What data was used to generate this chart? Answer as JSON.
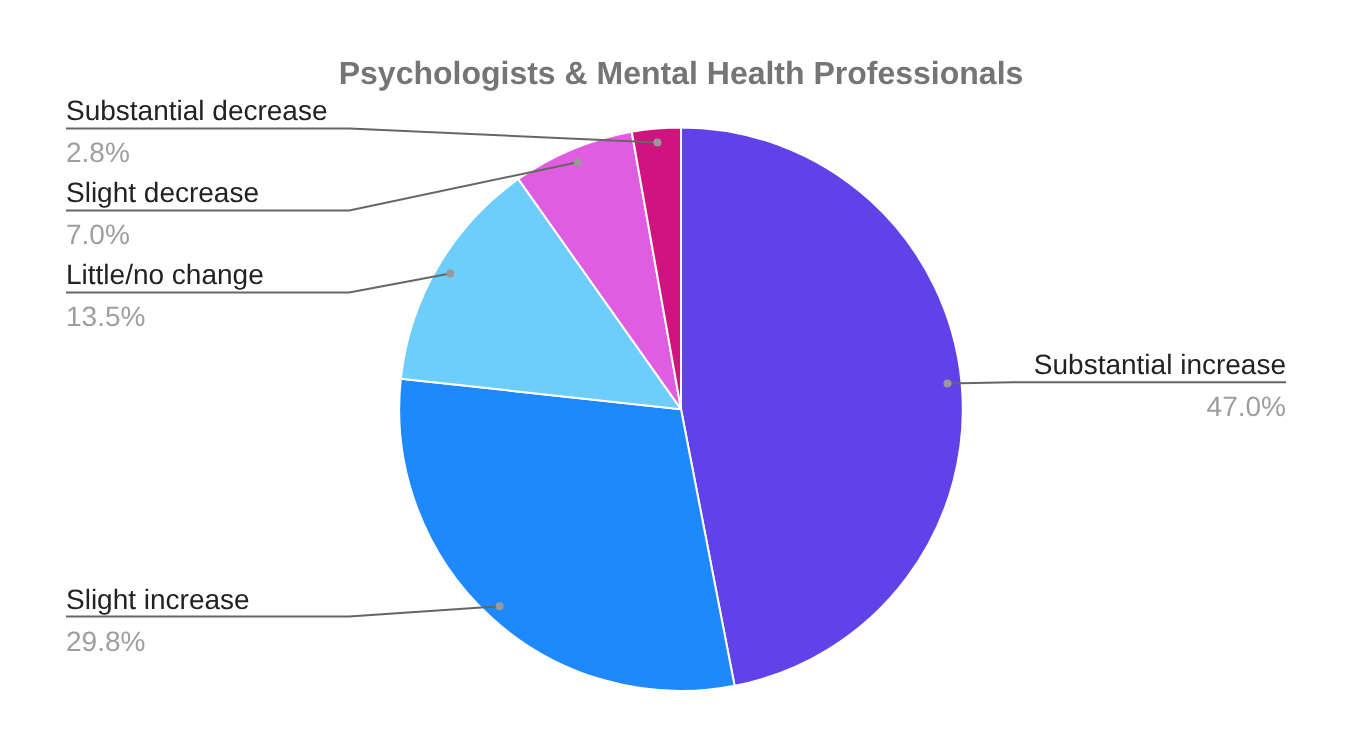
{
  "chart_data": {
    "type": "pie",
    "title": "Psychologists & Mental Health Professionals",
    "categories": [
      "Substantial increase",
      "Slight increase",
      "Little/no change",
      "Slight decrease",
      "Substantial decrease"
    ],
    "values": [
      47.0,
      29.8,
      13.5,
      7.0,
      2.8
    ],
    "value_labels": [
      "47.0%",
      "29.8%",
      "13.5%",
      "7.0%",
      "2.8%"
    ],
    "colors": [
      "#6141e8",
      "#1e88fd",
      "#6dcdfb",
      "#e05ce0",
      "#d0137e"
    ],
    "legend": false
  }
}
